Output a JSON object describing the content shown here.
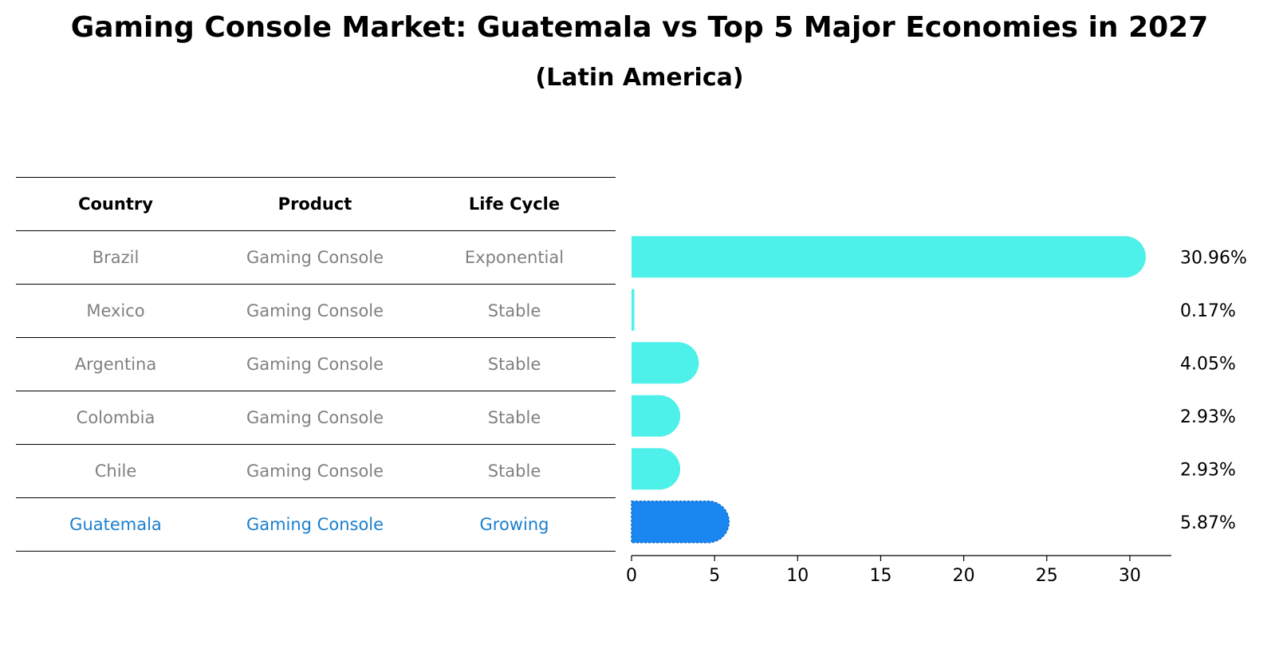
{
  "title": "Gaming Console Market: Guatemala vs Top 5 Major Economies in 2027",
  "subtitle": "(Latin America)",
  "table": {
    "headers": [
      "Country",
      "Product",
      "Life Cycle"
    ],
    "rows": [
      [
        "Brazil",
        "Gaming Console",
        "Exponential"
      ],
      [
        "Mexico",
        "Gaming Console",
        "Stable"
      ],
      [
        "Argentina",
        "Gaming Console",
        "Stable"
      ],
      [
        "Colombia",
        "Gaming Console",
        "Stable"
      ],
      [
        "Chile",
        "Gaming Console",
        "Stable"
      ],
      [
        "Guatemala",
        "Gaming Console",
        "Growing"
      ]
    ],
    "highlight_row": "Guatemala"
  },
  "chart_data": {
    "type": "bar",
    "orientation": "horizontal",
    "categories": [
      "Brazil",
      "Mexico",
      "Argentina",
      "Colombia",
      "Chile",
      "Guatemala"
    ],
    "values": [
      30.96,
      0.17,
      4.05,
      2.93,
      2.93,
      5.87
    ],
    "value_labels": [
      "30.96%",
      "0.17%",
      "4.05%",
      "2.93%",
      "2.93%",
      "5.87%"
    ],
    "xlim": [
      0,
      32.5
    ],
    "xticks": [
      0,
      5,
      10,
      15,
      20,
      25,
      30
    ],
    "grid": false,
    "colors": {
      "default_bar": "#4ef0ea",
      "highlight_bar": "#1a86f0",
      "highlight_label": "#1a7fd0",
      "table_text": "#808080"
    }
  }
}
